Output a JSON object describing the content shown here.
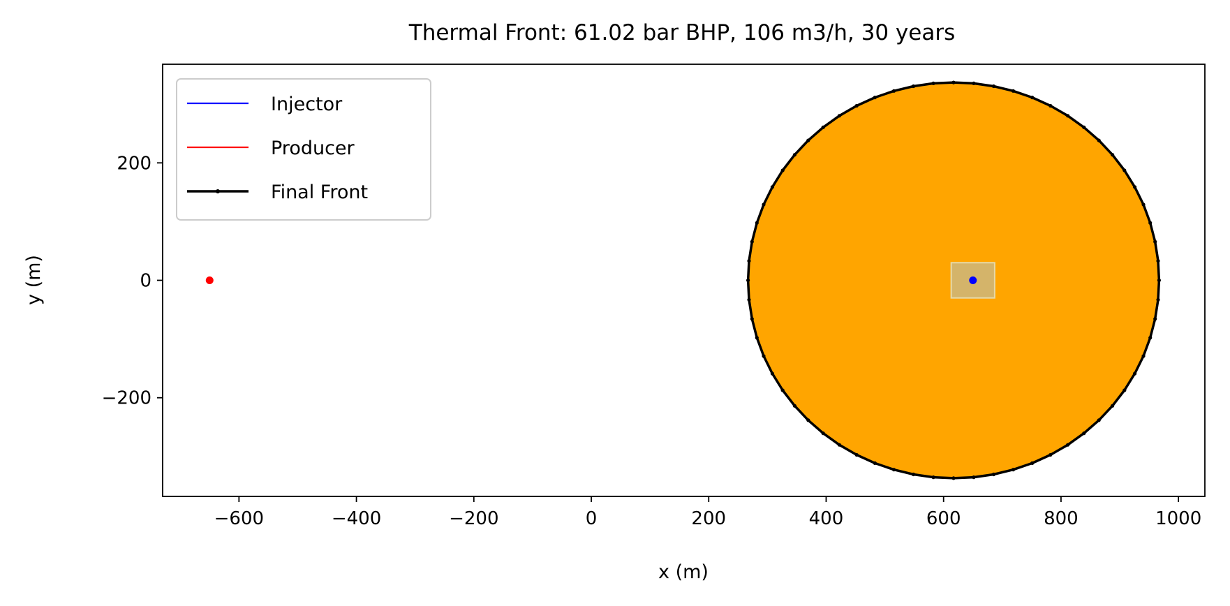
{
  "chart_data": {
    "type": "scatter",
    "title": "Thermal Front: 61.02 bar BHP, 106 m3/h, 30 years",
    "xlabel": "x (m)",
    "ylabel": "y (m)",
    "xlim": [
      -730,
      1045
    ],
    "ylim": [
      -368,
      368
    ],
    "xticks": [
      -600,
      -400,
      -200,
      0,
      200,
      400,
      600,
      800,
      1000
    ],
    "yticks": [
      -200,
      0,
      200
    ],
    "grid": false,
    "legend_position": "top-left",
    "legend": [
      {
        "label": "Injector",
        "color": "#0000ff",
        "style": "line"
      },
      {
        "label": "Producer",
        "color": "#ff0000",
        "style": "line"
      },
      {
        "label": "Final Front",
        "color": "#000000",
        "style": "line-marker"
      }
    ],
    "injector": {
      "x": 650,
      "y": 0,
      "color": "#0000ff"
    },
    "producer": {
      "x": -650,
      "y": 0,
      "color": "#ff0000"
    },
    "injector_box": {
      "x_range": [
        613,
        687
      ],
      "y_range": [
        -30,
        30
      ],
      "color": "#d4b46a"
    },
    "final_front": {
      "center": [
        617,
        0
      ],
      "radius_x": 350,
      "radius_y": 337,
      "n_points": 64,
      "fill_color": "#ffa500",
      "line_color": "#000000"
    }
  }
}
